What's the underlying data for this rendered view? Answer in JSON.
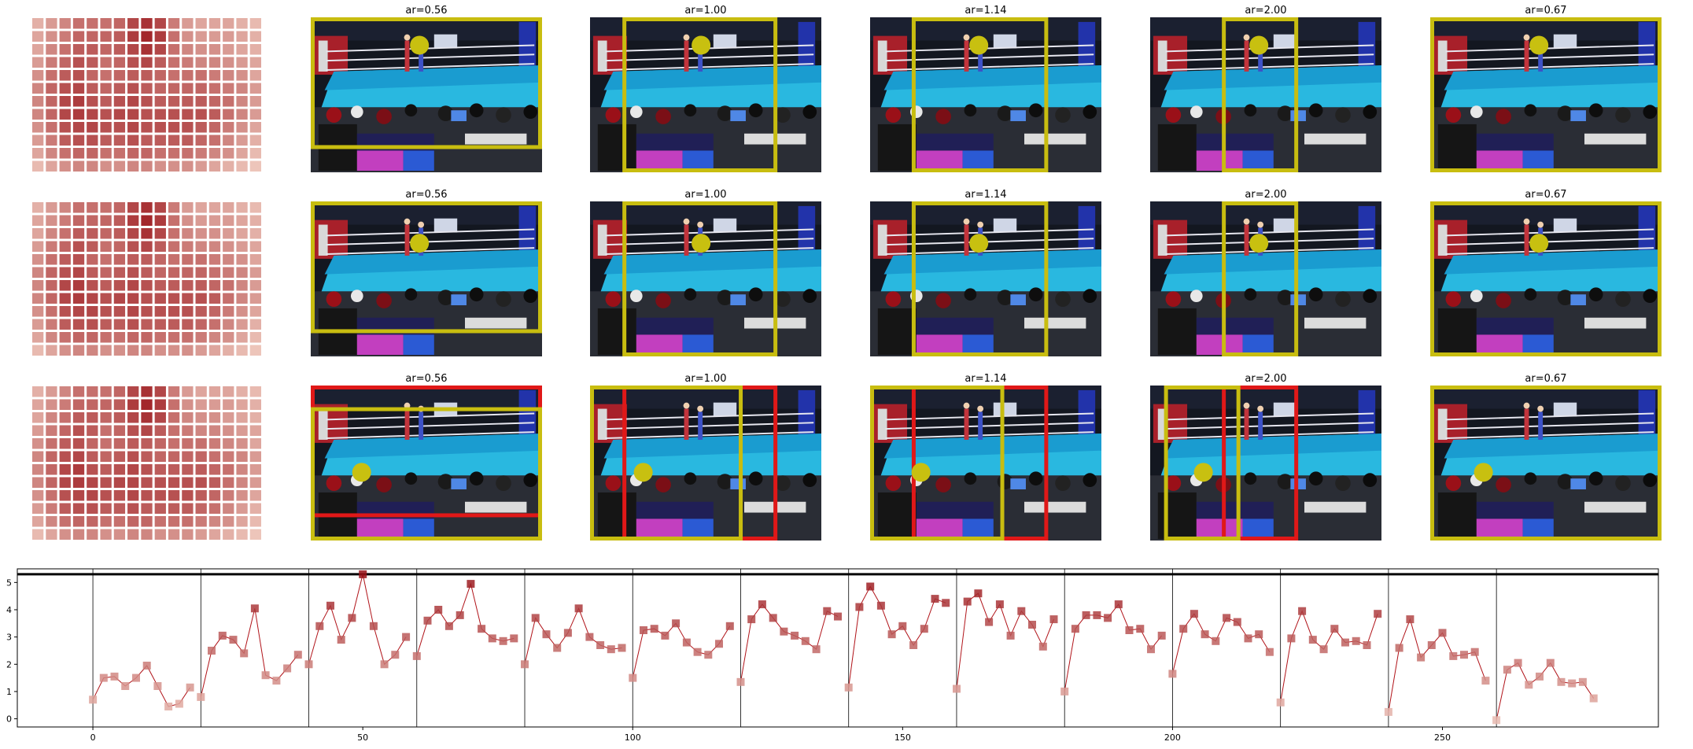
{
  "panel_titles": [
    "ar=0.56",
    "ar=1.00",
    "ar=1.14",
    "ar=2.00",
    "ar=0.67"
  ],
  "frame_rows": [
    {
      "circles": [
        [
          0.47,
          0.18
        ],
        [
          0.48,
          0.18
        ],
        [
          0.47,
          0.18
        ],
        [
          0.47,
          0.18
        ],
        [
          0.47,
          0.18
        ]
      ],
      "boxes": [
        [
          {
            "c": "yellow",
            "r": [
              0,
              0,
              1,
              0.85
            ]
          }
        ],
        [
          {
            "c": "yellow",
            "r": [
              0.14,
              0,
              0.81,
              1
            ]
          }
        ],
        [
          {
            "c": "yellow",
            "r": [
              0.18,
              0,
              0.77,
              1
            ]
          }
        ],
        [
          {
            "c": "yellow",
            "r": [
              0.31,
              0,
              0.64,
              1
            ]
          }
        ],
        [
          {
            "c": "yellow",
            "r": [
              0,
              0,
              1,
              1
            ]
          }
        ]
      ]
    },
    {
      "circles": [
        [
          0.47,
          0.27
        ],
        [
          0.48,
          0.27
        ],
        [
          0.47,
          0.27
        ],
        [
          0.47,
          0.27
        ],
        [
          0.47,
          0.27
        ]
      ],
      "boxes": [
        [
          {
            "c": "yellow",
            "r": [
              0,
              0,
              1,
              0.85
            ]
          }
        ],
        [
          {
            "c": "yellow",
            "r": [
              0.14,
              0,
              0.81,
              1
            ]
          }
        ],
        [
          {
            "c": "yellow",
            "r": [
              0.18,
              0,
              0.77,
              1
            ]
          }
        ],
        [
          {
            "c": "yellow",
            "r": [
              0.31,
              0,
              0.64,
              1
            ]
          }
        ],
        [
          {
            "c": "yellow",
            "r": [
              0,
              0,
              1,
              1
            ]
          }
        ]
      ]
    },
    {
      "circles": [
        [
          0.22,
          0.56
        ],
        [
          0.23,
          0.56
        ],
        [
          0.22,
          0.56
        ],
        [
          0.23,
          0.56
        ],
        [
          0.23,
          0.56
        ]
      ],
      "boxes": [
        [
          {
            "c": "red",
            "r": [
              0,
              0,
              1,
              0.85
            ]
          },
          {
            "c": "yellow",
            "r": [
              0,
              0.14,
              1,
              1
            ]
          }
        ],
        [
          {
            "c": "red",
            "r": [
              0.14,
              0,
              0.81,
              1
            ]
          },
          {
            "c": "yellow",
            "r": [
              0,
              0,
              0.66,
              1
            ]
          }
        ],
        [
          {
            "c": "red",
            "r": [
              0.18,
              0,
              0.77,
              1
            ]
          },
          {
            "c": "yellow",
            "r": [
              0,
              0,
              0.58,
              1
            ]
          }
        ],
        [
          {
            "c": "red",
            "r": [
              0.31,
              0,
              0.64,
              1
            ]
          },
          {
            "c": "yellow",
            "r": [
              0.06,
              0,
              0.39,
              1
            ]
          }
        ],
        [
          {
            "c": "yellow",
            "r": [
              0,
              0,
              1,
              1
            ]
          }
        ]
      ]
    }
  ],
  "heatmap_grid": [
    [
      0.25,
      0.35,
      0.45,
      0.55,
      0.55,
      0.55,
      0.6,
      0.75,
      0.85,
      0.75,
      0.5,
      0.35,
      0.3,
      0.3,
      0.3,
      0.25,
      0.2
    ],
    [
      0.3,
      0.4,
      0.5,
      0.6,
      0.6,
      0.6,
      0.65,
      0.8,
      0.9,
      0.8,
      0.55,
      0.4,
      0.35,
      0.35,
      0.35,
      0.3,
      0.25
    ],
    [
      0.3,
      0.45,
      0.55,
      0.65,
      0.65,
      0.6,
      0.65,
      0.75,
      0.85,
      0.75,
      0.55,
      0.45,
      0.4,
      0.4,
      0.35,
      0.3,
      0.25
    ],
    [
      0.35,
      0.5,
      0.6,
      0.7,
      0.65,
      0.55,
      0.6,
      0.7,
      0.75,
      0.65,
      0.55,
      0.5,
      0.45,
      0.45,
      0.4,
      0.35,
      0.3
    ],
    [
      0.4,
      0.55,
      0.65,
      0.7,
      0.6,
      0.55,
      0.6,
      0.65,
      0.65,
      0.6,
      0.55,
      0.55,
      0.55,
      0.5,
      0.45,
      0.4,
      0.3
    ],
    [
      0.45,
      0.6,
      0.7,
      0.75,
      0.65,
      0.6,
      0.65,
      0.7,
      0.65,
      0.6,
      0.6,
      0.6,
      0.6,
      0.55,
      0.5,
      0.45,
      0.35
    ],
    [
      0.45,
      0.6,
      0.75,
      0.8,
      0.7,
      0.65,
      0.7,
      0.75,
      0.7,
      0.65,
      0.65,
      0.65,
      0.65,
      0.6,
      0.55,
      0.45,
      0.35
    ],
    [
      0.45,
      0.6,
      0.75,
      0.8,
      0.75,
      0.7,
      0.75,
      0.75,
      0.7,
      0.7,
      0.7,
      0.7,
      0.7,
      0.65,
      0.55,
      0.45,
      0.35
    ],
    [
      0.4,
      0.55,
      0.7,
      0.75,
      0.75,
      0.7,
      0.7,
      0.75,
      0.7,
      0.7,
      0.7,
      0.7,
      0.65,
      0.6,
      0.5,
      0.4,
      0.3
    ],
    [
      0.35,
      0.5,
      0.65,
      0.7,
      0.7,
      0.65,
      0.65,
      0.7,
      0.65,
      0.65,
      0.65,
      0.65,
      0.6,
      0.55,
      0.45,
      0.35,
      0.25
    ],
    [
      0.3,
      0.45,
      0.55,
      0.6,
      0.6,
      0.55,
      0.55,
      0.6,
      0.6,
      0.55,
      0.55,
      0.55,
      0.5,
      0.45,
      0.4,
      0.3,
      0.2
    ],
    [
      0.2,
      0.3,
      0.4,
      0.45,
      0.45,
      0.4,
      0.4,
      0.45,
      0.45,
      0.4,
      0.4,
      0.4,
      0.35,
      0.3,
      0.25,
      0.2,
      0.15
    ]
  ],
  "chart_data": {
    "type": "line",
    "xlim": [
      -14,
      290
    ],
    "ylim": [
      -0.3,
      5.5
    ],
    "xticks": [
      0,
      50,
      100,
      150,
      200,
      250
    ],
    "yticks": [
      0,
      1,
      2,
      3,
      4,
      5
    ],
    "segment_boundaries": [
      0,
      20,
      40,
      60,
      80,
      100,
      120,
      140,
      160,
      180,
      200,
      220,
      240,
      260
    ],
    "threshold": 5.3,
    "series": [
      {
        "x": [
          0,
          2,
          4,
          6,
          8,
          10,
          12,
          14,
          16,
          18,
          20,
          22,
          24,
          26,
          28,
          30,
          32,
          34,
          36,
          38,
          40,
          42,
          44,
          46,
          48,
          50,
          52,
          54,
          56,
          58,
          60,
          62,
          64,
          66,
          68,
          70,
          72,
          74,
          76,
          78,
          80,
          82,
          84,
          86,
          88,
          90,
          92,
          94,
          96,
          98,
          100,
          102,
          104,
          106,
          108,
          110,
          112,
          114,
          116,
          118,
          120,
          122,
          124,
          126,
          128,
          130,
          132,
          134,
          136,
          138,
          140,
          142,
          144,
          146,
          148,
          150,
          152,
          154,
          156,
          158,
          160,
          162,
          164,
          166,
          168,
          170,
          172,
          174,
          176,
          178,
          180,
          182,
          184,
          186,
          188,
          190,
          192,
          194,
          196,
          198,
          200,
          202,
          204,
          206,
          208,
          210,
          212,
          214,
          216,
          218,
          220,
          222,
          224,
          226,
          228,
          230,
          232,
          234,
          236,
          238,
          240,
          242,
          244,
          246,
          248,
          250,
          252,
          254,
          256,
          258,
          260,
          262,
          264,
          266,
          268,
          270,
          272,
          274,
          276,
          278
        ],
        "values": [
          0.7,
          1.5,
          1.55,
          1.2,
          1.5,
          1.95,
          1.2,
          0.45,
          0.55,
          1.15,
          0.8,
          2.5,
          3.05,
          2.9,
          2.4,
          4.05,
          1.6,
          1.4,
          1.85,
          2.35,
          2.0,
          3.4,
          4.15,
          2.9,
          3.7,
          5.3,
          3.4,
          2.0,
          2.35,
          3.0,
          2.3,
          3.6,
          4.0,
          3.4,
          3.8,
          4.95,
          3.3,
          2.95,
          2.85,
          2.95,
          2.0,
          3.7,
          3.1,
          2.6,
          3.15,
          4.05,
          3.0,
          2.7,
          2.55,
          2.6,
          1.5,
          3.25,
          3.3,
          3.05,
          3.5,
          2.8,
          2.45,
          2.35,
          2.75,
          3.4,
          1.35,
          3.65,
          4.2,
          3.7,
          3.2,
          3.05,
          2.85,
          2.55,
          3.95,
          3.75,
          1.15,
          4.1,
          4.85,
          4.15,
          3.1,
          3.4,
          2.7,
          3.3,
          4.4,
          4.25,
          1.1,
          4.3,
          4.6,
          3.55,
          4.2,
          3.05,
          3.95,
          3.45,
          2.65,
          3.65,
          1.0,
          3.3,
          3.8,
          3.8,
          3.7,
          4.2,
          3.25,
          3.3,
          2.55,
          3.05,
          1.65,
          3.3,
          3.85,
          3.1,
          2.85,
          3.7,
          3.55,
          2.95,
          3.1,
          2.45,
          0.6,
          2.95,
          3.95,
          2.9,
          2.55,
          3.3,
          2.8,
          2.85,
          2.7,
          3.85,
          0.25,
          2.6,
          3.65,
          2.25,
          2.7,
          3.15,
          2.3,
          2.35,
          2.45,
          1.4,
          -0.05,
          1.8,
          2.05,
          1.25,
          1.55,
          2.05,
          1.35,
          1.3,
          1.35,
          0.75
        ]
      }
    ]
  }
}
